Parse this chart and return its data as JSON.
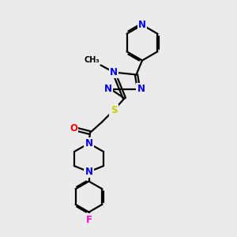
{
  "bg_color": "#ebebeb",
  "bond_color": "#000000",
  "bond_width": 1.6,
  "atom_colors": {
    "N": "#0000ee",
    "O": "#ff0000",
    "S": "#cccc00",
    "F": "#ff00cc",
    "C": "#000000"
  },
  "font_size_atom": 8.5,
  "figsize": [
    3.0,
    3.0
  ],
  "dpi": 100
}
